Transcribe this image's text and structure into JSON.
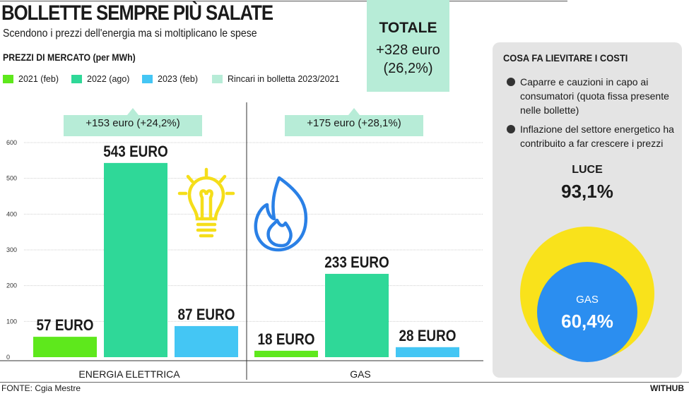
{
  "header": {
    "title": "BOLLETTE SEMPRE PIÙ SALATE",
    "subtitle": "Scendono i prezzi dell'energia ma si moltiplicano le spese",
    "market_label": "PREZZI DI MERCATO (per MWh)"
  },
  "legend": [
    {
      "label": "2021 (feb)",
      "color": "#5ee81c"
    },
    {
      "label": "2022 (ago)",
      "color": "#2fd898"
    },
    {
      "label": "2023  (feb)",
      "color": "#44c6f4"
    },
    {
      "label": "Rincari in bolletta 2023/2021",
      "color": "#b7ecd7"
    }
  ],
  "total": {
    "title": "TOTALE",
    "value": "+328 euro",
    "pct": "(26,2%)"
  },
  "callouts": {
    "electric": "+153 euro (+24,2%)",
    "gas": "+175 euro (+28,1%)"
  },
  "chart_data": {
    "type": "bar",
    "categories": [
      "ENERGIA ELETTRICA",
      "GAS"
    ],
    "series": [
      {
        "name": "2021 (feb)",
        "values": [
          57,
          18
        ],
        "labels": [
          "57 EURO",
          "18 EURO"
        ],
        "color": "#5ee81c"
      },
      {
        "name": "2022 (ago)",
        "values": [
          543,
          233
        ],
        "labels": [
          "543 EURO",
          "233 EURO"
        ],
        "color": "#2fd898"
      },
      {
        "name": "2023  (feb)",
        "values": [
          87,
          28
        ],
        "labels": [
          "87 EURO",
          "28 EURO"
        ],
        "color": "#44c6f4"
      }
    ],
    "ylim": [
      0,
      600
    ],
    "yticks": [
      "0",
      "100",
      "200",
      "300",
      "400",
      "500",
      "600"
    ],
    "grid": true,
    "icons": [
      "lightbulb-icon",
      "flame-icon"
    ]
  },
  "costs_panel": {
    "title": "COSA FA LIEVITARE I COSTI",
    "items": [
      "Caparre e cauzioni in capo ai consumatori (quota fissa presente nelle bollette)",
      "Inflazione del settore energetico ha contribuito a far crescere i prezzi"
    ],
    "luce_label": "LUCE",
    "luce_value": "93,1%",
    "gas_label": "GAS",
    "gas_value": "60,4%",
    "luce_color": "#f9e21b",
    "gas_color": "#2b8ef0"
  },
  "footer": {
    "source": "FONTE: Cgia Mestre",
    "brand": "WITHUB"
  }
}
